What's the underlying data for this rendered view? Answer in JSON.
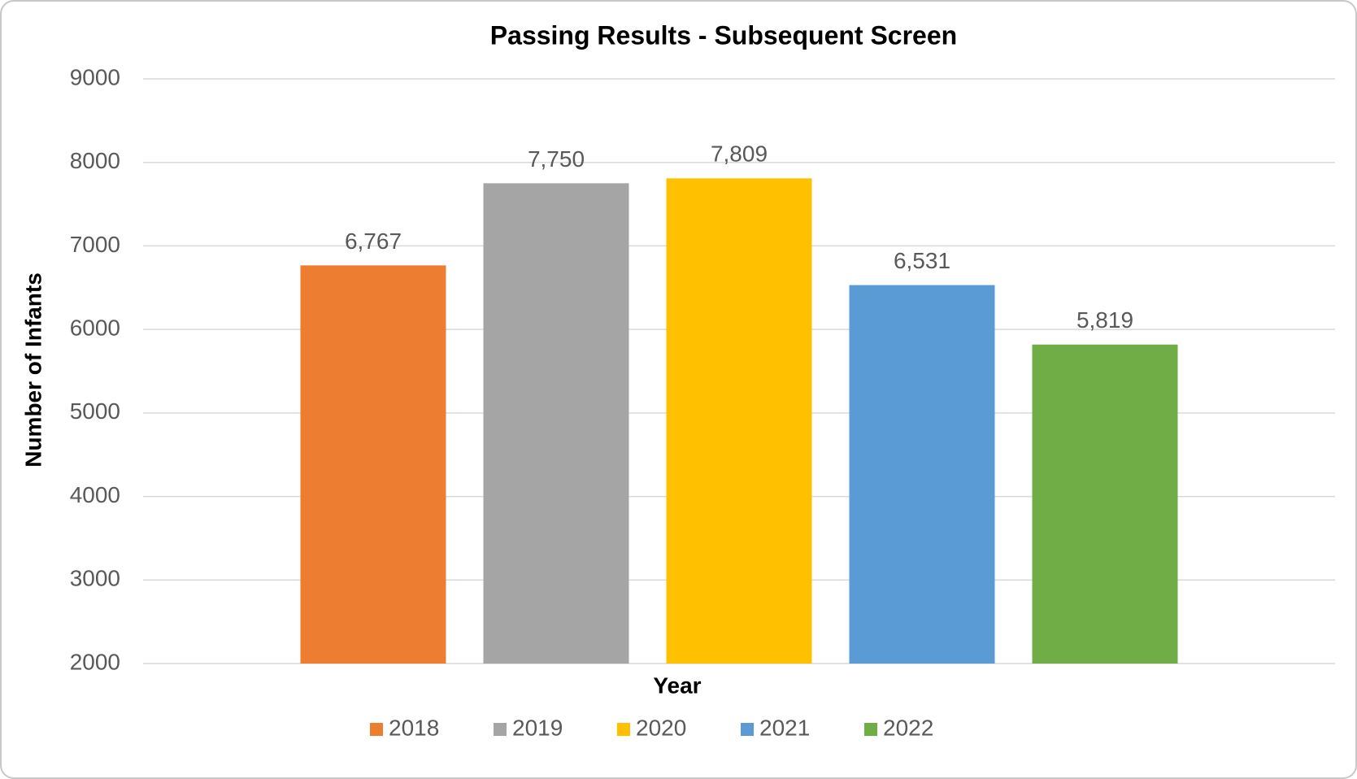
{
  "chart_data": {
    "type": "bar",
    "title": "Passing Results - Subsequent Screen",
    "x_label": "Year",
    "y_label": "Number of Infants",
    "categories": [
      null
    ],
    "series": [
      {
        "name": "2018",
        "color": "#ed7d31",
        "values": [
          6767
        ],
        "value_labels": [
          "6,767"
        ]
      },
      {
        "name": "2019",
        "color": "#a5a5a5",
        "values": [
          7750
        ],
        "value_labels": [
          "7,750"
        ]
      },
      {
        "name": "2020",
        "color": "#ffc000",
        "values": [
          7809
        ],
        "value_labels": [
          "7,809"
        ]
      },
      {
        "name": "2021",
        "color": "#5b9bd5",
        "values": [
          6531
        ],
        "value_labels": [
          "6,531"
        ]
      },
      {
        "name": "2022",
        "color": "#70ad47",
        "values": [
          5819
        ],
        "value_labels": [
          "5,819"
        ]
      }
    ],
    "ylim": [
      2000,
      9000
    ],
    "yticks": [
      2000,
      3000,
      4000,
      5000,
      6000,
      7000,
      8000,
      9000
    ],
    "grid": true,
    "legend": "bottom"
  }
}
